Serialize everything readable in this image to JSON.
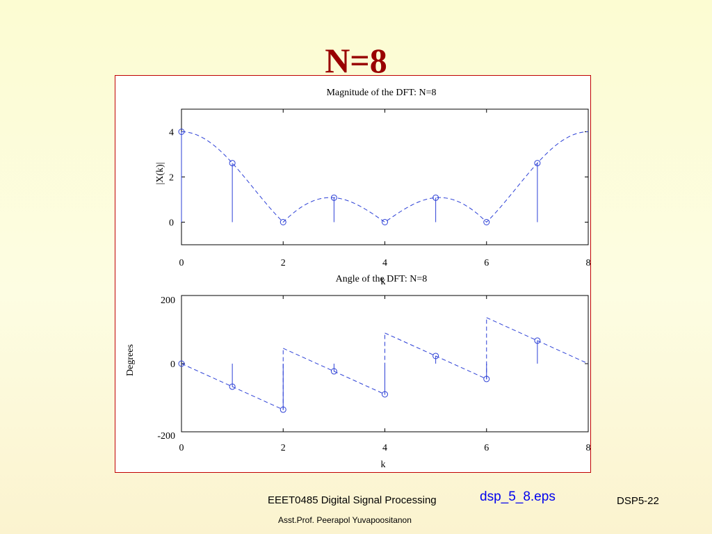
{
  "slide": {
    "title": "N=8",
    "course": "EEET0485 Digital Signal Processing",
    "author": "Asst.Prof. Peerapol Yuvapoositanon",
    "filename": "dsp_5_8.eps",
    "slide_number": "DSP5-22"
  },
  "colors": {
    "title": "#990000",
    "stem": "#2b3fd6",
    "frame": "#c00000",
    "link": "#0000ee"
  },
  "chart_data": [
    {
      "type": "stem",
      "title": "Magnitude of the DFT: N=8",
      "xlabel": "k",
      "ylabel": "|X(k)|",
      "xlim": [
        0,
        8
      ],
      "ylim": [
        -1,
        5
      ],
      "xticks": [
        0,
        2,
        4,
        6,
        8
      ],
      "yticks": [
        0,
        2,
        4
      ],
      "stems": {
        "x": [
          0,
          1,
          2,
          3,
          4,
          5,
          6,
          7
        ],
        "y": [
          4.0,
          2.613,
          0.0,
          1.082,
          0.0,
          1.082,
          0.0,
          2.613
        ]
      },
      "envelope": "|sin(pi*k/2)/sin(pi*k/8)|",
      "grid": false
    },
    {
      "type": "stem",
      "title": "Angle of the DFT: N=8",
      "xlabel": "k",
      "ylabel": "Degrees",
      "xlim": [
        0,
        8
      ],
      "ylim": [
        -200,
        200
      ],
      "xticks": [
        0,
        2,
        4,
        6,
        8
      ],
      "yticks": [
        -200,
        0,
        200
      ],
      "stems": {
        "x": [
          0,
          1,
          2,
          3,
          4,
          5,
          6,
          7
        ],
        "y": [
          0,
          -67.5,
          -135,
          -22.5,
          -90,
          22.5,
          -45,
          67.5
        ]
      },
      "envelope": "-67.5*k wrapped, jumps +180 at k=2,4,6",
      "grid": false
    }
  ]
}
